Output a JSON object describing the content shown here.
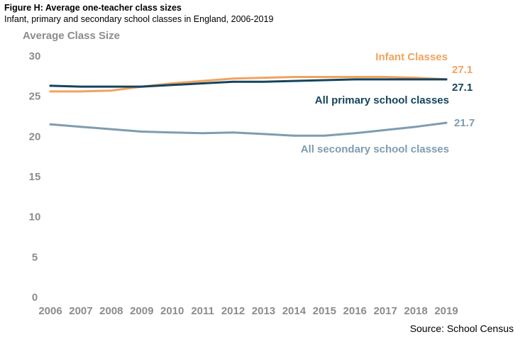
{
  "header": {
    "title": "Figure H: Average one-teacher class sizes",
    "subtitle": "Infant, primary and secondary school classes in England, 2006-2019"
  },
  "source": "Source: School Census",
  "chart_data": {
    "type": "line",
    "ylabel": "Average Class Size",
    "xlabel": "",
    "ylim": [
      0,
      30
    ],
    "yticks": [
      0,
      5,
      10,
      15,
      20,
      25,
      30
    ],
    "x": [
      "2006",
      "2007",
      "2008",
      "2009",
      "2010",
      "2011",
      "2012",
      "2013",
      "2014",
      "2015",
      "2016",
      "2017",
      "2018",
      "2019"
    ],
    "grid": false,
    "series": [
      {
        "name": "Infant Classes",
        "color": "#f0a35e",
        "values": [
          25.6,
          25.6,
          25.7,
          26.2,
          26.6,
          26.9,
          27.2,
          27.3,
          27.4,
          27.4,
          27.4,
          27.4,
          27.3,
          27.1
        ],
        "end_label": "27.1"
      },
      {
        "name": "All primary school classes",
        "color": "#14445f",
        "values": [
          26.3,
          26.2,
          26.2,
          26.2,
          26.4,
          26.6,
          26.8,
          26.8,
          26.9,
          27.0,
          27.1,
          27.1,
          27.1,
          27.1
        ],
        "end_label": "27.1"
      },
      {
        "name": "All secondary school classes",
        "color": "#7f9cb0",
        "values": [
          21.5,
          21.2,
          20.9,
          20.6,
          20.5,
          20.4,
          20.5,
          20.3,
          20.1,
          20.1,
          20.4,
          20.8,
          21.2,
          21.7
        ],
        "end_label": "21.7"
      }
    ]
  }
}
